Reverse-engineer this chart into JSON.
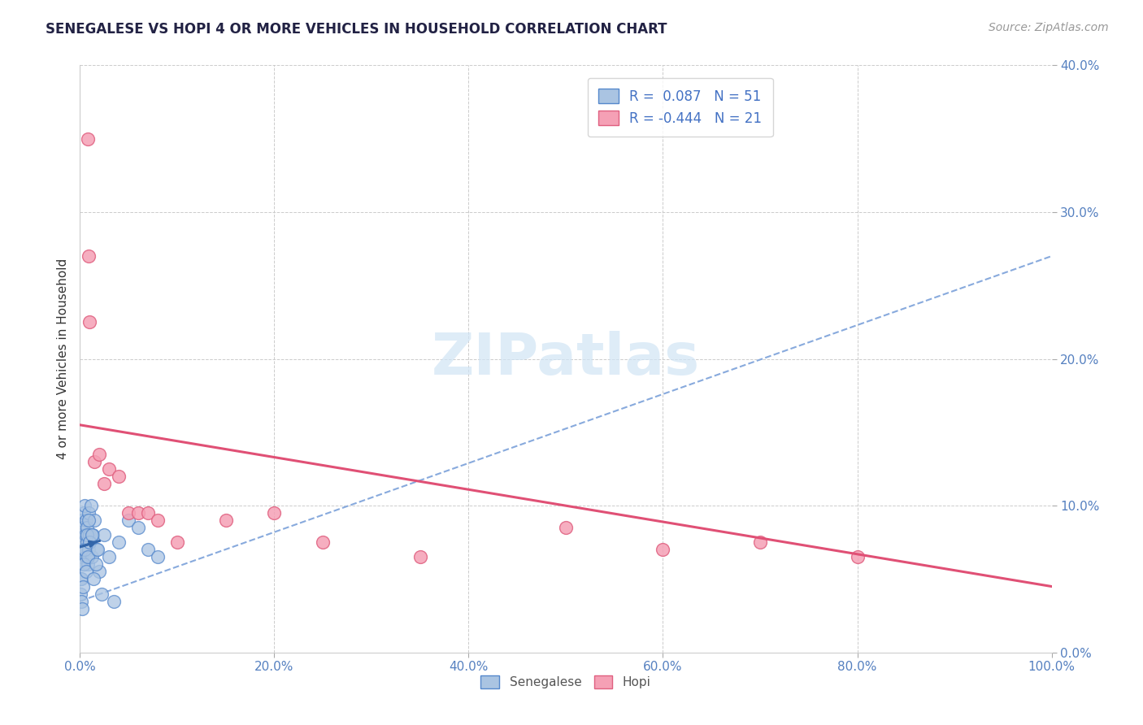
{
  "title": "SENEGALESE VS HOPI 4 OR MORE VEHICLES IN HOUSEHOLD CORRELATION CHART",
  "source": "Source: ZipAtlas.com",
  "ylabel": "4 or more Vehicles in Household",
  "senegalese_x": [
    0.05,
    0.1,
    0.15,
    0.2,
    0.25,
    0.3,
    0.35,
    0.4,
    0.45,
    0.5,
    0.55,
    0.6,
    0.65,
    0.7,
    0.75,
    0.8,
    0.85,
    0.9,
    0.95,
    1.0,
    1.1,
    1.2,
    1.3,
    1.5,
    1.7,
    2.0,
    2.5,
    3.0,
    4.0,
    5.0,
    6.0,
    7.0,
    8.0,
    0.05,
    0.1,
    0.15,
    0.2,
    0.3,
    0.4,
    0.5,
    0.6,
    0.7,
    0.8,
    0.9,
    1.0,
    1.2,
    1.4,
    1.6,
    1.8,
    2.2,
    3.5
  ],
  "senegalese_y": [
    5.0,
    8.0,
    6.5,
    9.0,
    7.5,
    8.5,
    6.0,
    9.5,
    7.0,
    10.0,
    8.0,
    6.5,
    9.0,
    7.5,
    8.5,
    6.0,
    7.0,
    9.5,
    8.0,
    7.5,
    10.0,
    6.5,
    8.0,
    9.0,
    7.0,
    5.5,
    8.0,
    6.5,
    7.5,
    9.0,
    8.5,
    7.0,
    6.5,
    4.0,
    3.5,
    5.0,
    3.0,
    4.5,
    6.0,
    7.0,
    5.5,
    8.0,
    6.5,
    9.0,
    7.5,
    8.0,
    5.0,
    6.0,
    7.0,
    4.0,
    3.5
  ],
  "hopi_x": [
    0.8,
    0.9,
    1.0,
    1.5,
    2.0,
    2.5,
    3.0,
    4.0,
    5.0,
    6.0,
    7.0,
    8.0,
    10.0,
    15.0,
    20.0,
    25.0,
    35.0,
    50.0,
    60.0,
    70.0,
    80.0
  ],
  "hopi_y": [
    35.0,
    27.0,
    22.5,
    13.0,
    13.5,
    11.5,
    12.5,
    12.0,
    9.5,
    9.5,
    9.5,
    9.0,
    7.5,
    9.0,
    9.5,
    7.5,
    6.5,
    8.5,
    7.0,
    7.5,
    6.5
  ],
  "senegalese_color": "#aac4e2",
  "hopi_color": "#f5a0b5",
  "senegalese_edge_color": "#5588cc",
  "hopi_edge_color": "#e06080",
  "senegalese_trend_color": "#3366aa",
  "hopi_trend_color": "#e05075",
  "dashed_trend_color": "#88aadd",
  "hopi_trend_x0": 0,
  "hopi_trend_y0": 15.5,
  "hopi_trend_x1": 100,
  "hopi_trend_y1": 4.5,
  "dashed_x0": 0,
  "dashed_y0": 3.5,
  "dashed_x1": 100,
  "dashed_y1": 27.0,
  "sen_trend_x0": 0.05,
  "sen_trend_y0": 7.2,
  "sen_trend_x1": 2.0,
  "sen_trend_y1": 7.6,
  "xlim": [
    0,
    100
  ],
  "ylim": [
    0,
    40
  ],
  "xticks": [
    0,
    20,
    40,
    60,
    80,
    100
  ],
  "yticks": [
    0,
    10,
    20,
    30,
    40
  ],
  "xticklabels": [
    "0.0%",
    "20.0%",
    "40.0%",
    "60.0%",
    "80.0%",
    "100.0%"
  ],
  "yticklabels": [
    "0.0%",
    "10.0%",
    "20.0%",
    "30.0%",
    "40.0%"
  ],
  "title_fontsize": 12,
  "source_fontsize": 10,
  "label_fontsize": 11,
  "tick_fontsize": 11,
  "background_color": "#ffffff",
  "grid_color": "#cccccc",
  "R_senegalese": 0.087,
  "N_senegalese": 51,
  "R_hopi": -0.444,
  "N_hopi": 21,
  "legend_text_color": "#4472c4",
  "watermark": "ZIPatlas",
  "watermark_color": "#d0e4f5"
}
